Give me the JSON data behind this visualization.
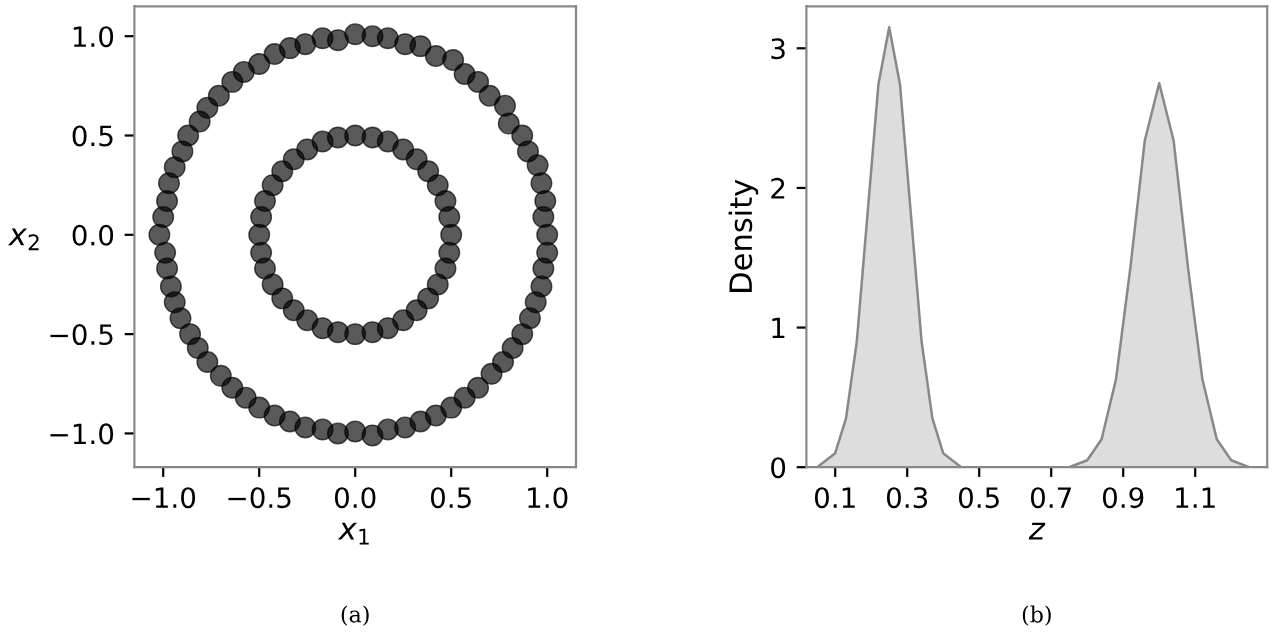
{
  "chart_data": [
    {
      "type": "scatter",
      "xlabel": "x$_{1}$",
      "ylabel": "x$_{2}$",
      "annotations": [
        "(a)"
      ],
      "xlim": [
        -1.15,
        1.15
      ],
      "ylim": [
        -1.17,
        1.15
      ],
      "xticks": [
        {
          "value": -1.0,
          "label": "−1.0"
        },
        {
          "value": -0.5,
          "label": "−0.5"
        },
        {
          "value": 0.0,
          "label": "0.0"
        },
        {
          "value": 0.5,
          "label": "0.5"
        },
        {
          "value": 1.0,
          "label": "1.0"
        }
      ],
      "yticks": [
        {
          "value": -1.0,
          "label": "−1.0"
        },
        {
          "value": -0.5,
          "label": "−0.5"
        },
        {
          "value": 0.0,
          "label": "0.0"
        },
        {
          "value": 0.5,
          "label": "0.5"
        },
        {
          "value": 1.0,
          "label": "1.0"
        }
      ],
      "grid": false,
      "marker": "circle",
      "series": [
        {
          "color": "#000000",
          "x": [
            1.0,
            0.98,
            0.99,
            0.97,
            0.95,
            0.9,
            0.87,
            0.8,
            0.78,
            0.7,
            0.64,
            0.57,
            0.51,
            0.42,
            0.34,
            0.26,
            0.17,
            0.09,
            0,
            -0.09,
            -0.17,
            -0.26,
            -0.34,
            -0.42,
            -0.5,
            -0.58,
            -0.64,
            -0.71,
            -0.77,
            -0.81,
            -0.87,
            -0.9,
            -0.94,
            -0.97,
            -0.98,
            -1.0,
            -1.02,
            -0.99,
            -0.98,
            -0.96,
            -0.94,
            -0.91,
            -0.86,
            -0.82,
            -0.77,
            -0.7,
            -0.64,
            -0.57,
            -0.5,
            -0.42,
            -0.34,
            -0.26,
            -0.17,
            -0.09,
            0,
            0.09,
            0.17,
            0.26,
            0.34,
            0.42,
            0.5,
            0.57,
            0.64,
            0.71,
            0.77,
            0.82,
            0.87,
            0.91,
            0.94,
            0.97,
            0.98,
            1.0
          ],
          "values": [
            0,
            0.09,
            0.17,
            0.26,
            0.35,
            0.42,
            0.5,
            0.56,
            0.65,
            0.7,
            0.77,
            0.81,
            0.88,
            0.9,
            0.95,
            0.96,
            0.99,
            1.0,
            1.01,
            0.98,
            0.99,
            0.96,
            0.94,
            0.91,
            0.86,
            0.82,
            0.77,
            0.7,
            0.64,
            0.57,
            0.5,
            0.42,
            0.34,
            0.26,
            0.17,
            0.09,
            0,
            -0.09,
            -0.17,
            -0.26,
            -0.34,
            -0.42,
            -0.5,
            -0.57,
            -0.64,
            -0.71,
            -0.77,
            -0.82,
            -0.87,
            -0.91,
            -0.94,
            -0.97,
            -0.98,
            -1.0,
            -0.99,
            -1.01,
            -0.98,
            -0.97,
            -0.94,
            -0.91,
            -0.87,
            -0.82,
            -0.77,
            -0.7,
            -0.64,
            -0.57,
            -0.5,
            -0.42,
            -0.34,
            -0.26,
            -0.17,
            -0.09
          ]
        },
        {
          "color": "#000000",
          "x": [
            0.5,
            0.49,
            0.47,
            0.43,
            0.38,
            0.32,
            0.25,
            0.17,
            0.09,
            0,
            -0.09,
            -0.17,
            -0.25,
            -0.32,
            -0.38,
            -0.43,
            -0.47,
            -0.49,
            -0.5,
            -0.49,
            -0.47,
            -0.43,
            -0.38,
            -0.32,
            -0.25,
            -0.17,
            -0.09,
            0,
            0.09,
            0.17,
            0.25,
            0.32,
            0.38,
            0.43,
            0.47,
            0.49
          ],
          "values": [
            0,
            0.09,
            0.17,
            0.25,
            0.32,
            0.38,
            0.43,
            0.47,
            0.49,
            0.5,
            0.49,
            0.47,
            0.43,
            0.38,
            0.32,
            0.25,
            0.17,
            0.09,
            0,
            -0.09,
            -0.17,
            -0.25,
            -0.32,
            -0.38,
            -0.43,
            -0.47,
            -0.49,
            -0.5,
            -0.49,
            -0.47,
            -0.43,
            -0.38,
            -0.32,
            -0.25,
            -0.17,
            -0.09
          ]
        }
      ]
    },
    {
      "type": "area",
      "xlabel": "z",
      "ylabel": "Density",
      "annotations": [
        "(b)"
      ],
      "xlim": [
        0.02,
        1.3
      ],
      "ylim": [
        0,
        3.3
      ],
      "xticks": [
        0.1,
        0.3,
        0.5,
        0.7,
        0.9,
        1.1
      ],
      "yticks": [
        0,
        1,
        2,
        3
      ],
      "grid": false,
      "series": [
        {
          "color": "#dddddd",
          "x": [
            0.03,
            0.05,
            0.1,
            0.13,
            0.16,
            0.19,
            0.22,
            0.25,
            0.28,
            0.31,
            0.34,
            0.37,
            0.4,
            0.45,
            0.5,
            0.75,
            0.8,
            0.84,
            0.88,
            0.92,
            0.96,
            1.0,
            1.04,
            1.08,
            1.12,
            1.16,
            1.2,
            1.25,
            1.29
          ],
          "values": [
            0,
            0,
            0.1,
            0.35,
            0.9,
            1.82,
            2.74,
            3.15,
            2.74,
            1.82,
            0.9,
            0.35,
            0.1,
            0,
            0,
            0,
            0.05,
            0.2,
            0.63,
            1.43,
            2.34,
            2.75,
            2.34,
            1.43,
            0.63,
            0.2,
            0.05,
            0,
            0
          ]
        }
      ]
    }
  ]
}
